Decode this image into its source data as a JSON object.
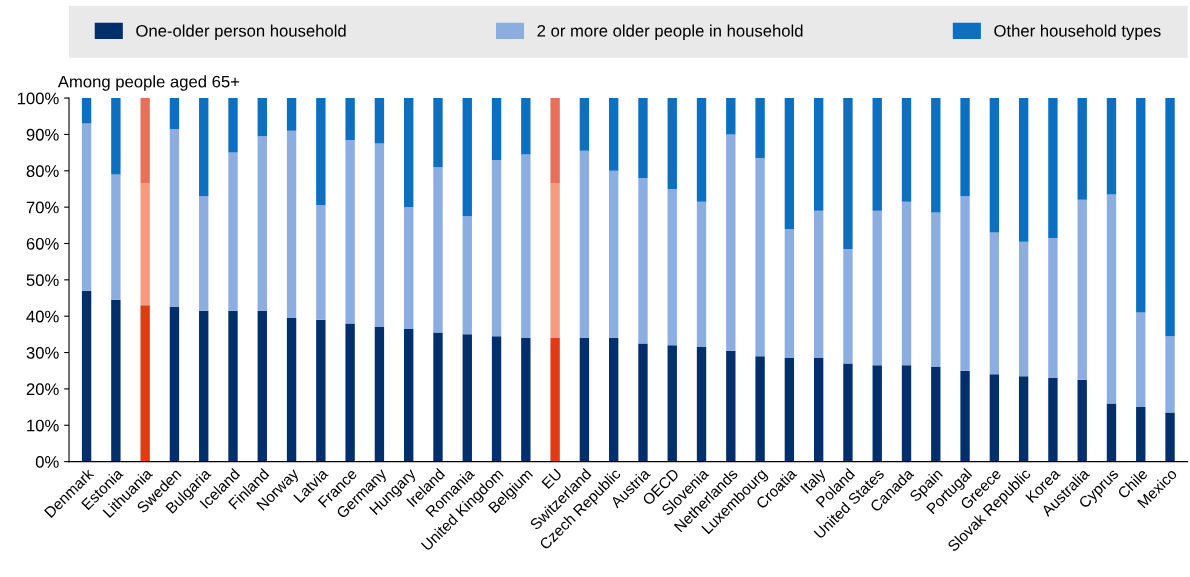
{
  "chart_data": {
    "type": "bar",
    "stacked": true,
    "ylabel": "Among people aged 65+",
    "categories": [
      "Denmark",
      "Estonia",
      "Lithuania",
      "Sweden",
      "Bulgaria",
      "Iceland",
      "Finland",
      "Norway",
      "Latvia",
      "France",
      "Germany",
      "Hungary",
      "Ireland",
      "Romania",
      "United Kingdom",
      "Belgium",
      "EU",
      "Switzerland",
      "Czech Republic",
      "Austria",
      "OECD",
      "Slovenia",
      "Netherlands",
      "Luxembourg",
      "Croatia",
      "Italy",
      "Poland",
      "United States",
      "Canada",
      "Spain",
      "Portugal",
      "Greece",
      "Slovak Republic",
      "Korea",
      "Australia",
      "Cyprus",
      "Chile",
      "Mexico"
    ],
    "series": [
      {
        "name": "One-older person household",
        "color": "#002f6c",
        "colors": [
          "#002f6c",
          "#002f6c",
          "#e23a14",
          "#002f6c",
          "#002f6c",
          "#002f6c",
          "#002f6c",
          "#002f6c",
          "#002f6c",
          "#002f6c",
          "#002f6c",
          "#002f6c",
          "#002f6c",
          "#002f6c",
          "#002f6c",
          "#002f6c",
          "#e23a14",
          "#002f6c",
          "#002f6c",
          "#002f6c",
          "#002f6c",
          "#002f6c",
          "#002f6c",
          "#002f6c",
          "#002f6c",
          "#002f6c",
          "#002f6c",
          "#002f6c",
          "#002f6c",
          "#002f6c",
          "#002f6c",
          "#002f6c",
          "#002f6c",
          "#002f6c",
          "#002f6c",
          "#002f6c",
          "#002f6c",
          "#002f6c"
        ],
        "values": [
          47,
          44.5,
          43,
          42.5,
          41.5,
          41.5,
          41.5,
          39.5,
          39,
          38,
          37,
          36.5,
          35.5,
          35,
          34.5,
          34,
          34,
          34,
          34,
          32.5,
          32,
          31.5,
          30.5,
          29,
          28.5,
          28.5,
          27,
          26.5,
          26.5,
          26,
          25,
          24,
          23.5,
          23,
          22.5,
          16,
          15,
          13.5
        ]
      },
      {
        "name": "2 or more older people in household",
        "color": "#8cade0",
        "colors": [
          "#8cade0",
          "#8cade0",
          "#f59c80",
          "#8cade0",
          "#8cade0",
          "#8cade0",
          "#8cade0",
          "#8cade0",
          "#8cade0",
          "#8cade0",
          "#8cade0",
          "#8cade0",
          "#8cade0",
          "#8cade0",
          "#8cade0",
          "#8cade0",
          "#f59c80",
          "#8cade0",
          "#8cade0",
          "#8cade0",
          "#8cade0",
          "#8cade0",
          "#8cade0",
          "#8cade0",
          "#8cade0",
          "#8cade0",
          "#8cade0",
          "#8cade0",
          "#8cade0",
          "#8cade0",
          "#8cade0",
          "#8cade0",
          "#8cade0",
          "#8cade0",
          "#8cade0",
          "#8cade0",
          "#8cade0",
          "#8cade0"
        ],
        "values": [
          46,
          34.5,
          33.5,
          49,
          31.5,
          43.5,
          48,
          51.5,
          31.5,
          50.5,
          50.5,
          33.5,
          45.5,
          32.5,
          48.5,
          50.5,
          42.5,
          51.5,
          46,
          45.5,
          43,
          40,
          59.5,
          54.5,
          35.5,
          40.5,
          31.5,
          42.5,
          45,
          42.5,
          48,
          39,
          37,
          38.5,
          49.5,
          57.5,
          26,
          21
        ]
      },
      {
        "name": "Other household types",
        "color": "#0c6fc0",
        "colors": [
          "#0c6fc0",
          "#0c6fc0",
          "#e8705a",
          "#0c6fc0",
          "#0c6fc0",
          "#0c6fc0",
          "#0c6fc0",
          "#0c6fc0",
          "#0c6fc0",
          "#0c6fc0",
          "#0c6fc0",
          "#0c6fc0",
          "#0c6fc0",
          "#0c6fc0",
          "#0c6fc0",
          "#0c6fc0",
          "#e8705a",
          "#0c6fc0",
          "#0c6fc0",
          "#0c6fc0",
          "#0c6fc0",
          "#0c6fc0",
          "#0c6fc0",
          "#0c6fc0",
          "#0c6fc0",
          "#0c6fc0",
          "#0c6fc0",
          "#0c6fc0",
          "#0c6fc0",
          "#0c6fc0",
          "#0c6fc0",
          "#0c6fc0",
          "#0c6fc0",
          "#0c6fc0",
          "#0c6fc0",
          "#0c6fc0",
          "#0c6fc0",
          "#0c6fc0"
        ],
        "values": [
          7,
          21,
          23.5,
          8.5,
          27,
          15,
          10.5,
          9,
          29.5,
          11.5,
          12.5,
          30,
          19,
          32.5,
          17,
          15.5,
          23.5,
          14.5,
          20,
          22,
          25,
          28.5,
          10,
          16.5,
          36,
          31,
          41.5,
          31,
          28.5,
          31.5,
          27,
          37,
          39.5,
          38.5,
          28,
          26.5,
          59,
          65.5
        ]
      }
    ],
    "ylim": [
      0,
      100
    ],
    "yticks": [
      {
        "value": 0,
        "label": "0%"
      },
      {
        "value": 10,
        "label": "10%"
      },
      {
        "value": 20,
        "label": "20%"
      },
      {
        "value": 30,
        "label": "30%"
      },
      {
        "value": 40,
        "label": "40%"
      },
      {
        "value": 50,
        "label": "50%"
      },
      {
        "value": 60,
        "label": "60%"
      },
      {
        "value": 70,
        "label": "70%"
      },
      {
        "value": 80,
        "label": "80%"
      },
      {
        "value": 90,
        "label": "90%"
      },
      {
        "value": 100,
        "label": "100%"
      }
    ],
    "grid": false,
    "legend": "top"
  }
}
